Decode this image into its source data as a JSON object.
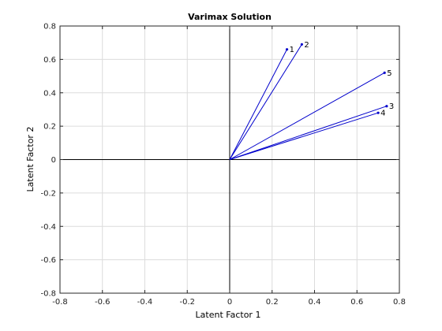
{
  "chart_data": {
    "type": "line",
    "title": "Varimax Solution",
    "xlabel": "Latent Factor 1",
    "ylabel": "Latent Factor 2",
    "xlim": [
      -0.8,
      0.8
    ],
    "ylim": [
      -0.8,
      0.8
    ],
    "xticks": [
      "-0.8",
      "-0.6",
      "-0.4",
      "-0.2",
      "0",
      "0.2",
      "0.4",
      "0.6",
      "0.8"
    ],
    "yticks": [
      "-0.8",
      "-0.6",
      "-0.4",
      "-0.2",
      "0",
      "0.2",
      "0.4",
      "0.6",
      "0.8"
    ],
    "grid": true,
    "vector_color": "#0000cc",
    "points": [
      {
        "label": "1",
        "x": 0.27,
        "y": 0.66
      },
      {
        "label": "2",
        "x": 0.34,
        "y": 0.69
      },
      {
        "label": "3",
        "x": 0.74,
        "y": 0.32
      },
      {
        "label": "4",
        "x": 0.7,
        "y": 0.28
      },
      {
        "label": "5",
        "x": 0.73,
        "y": 0.52
      }
    ]
  }
}
